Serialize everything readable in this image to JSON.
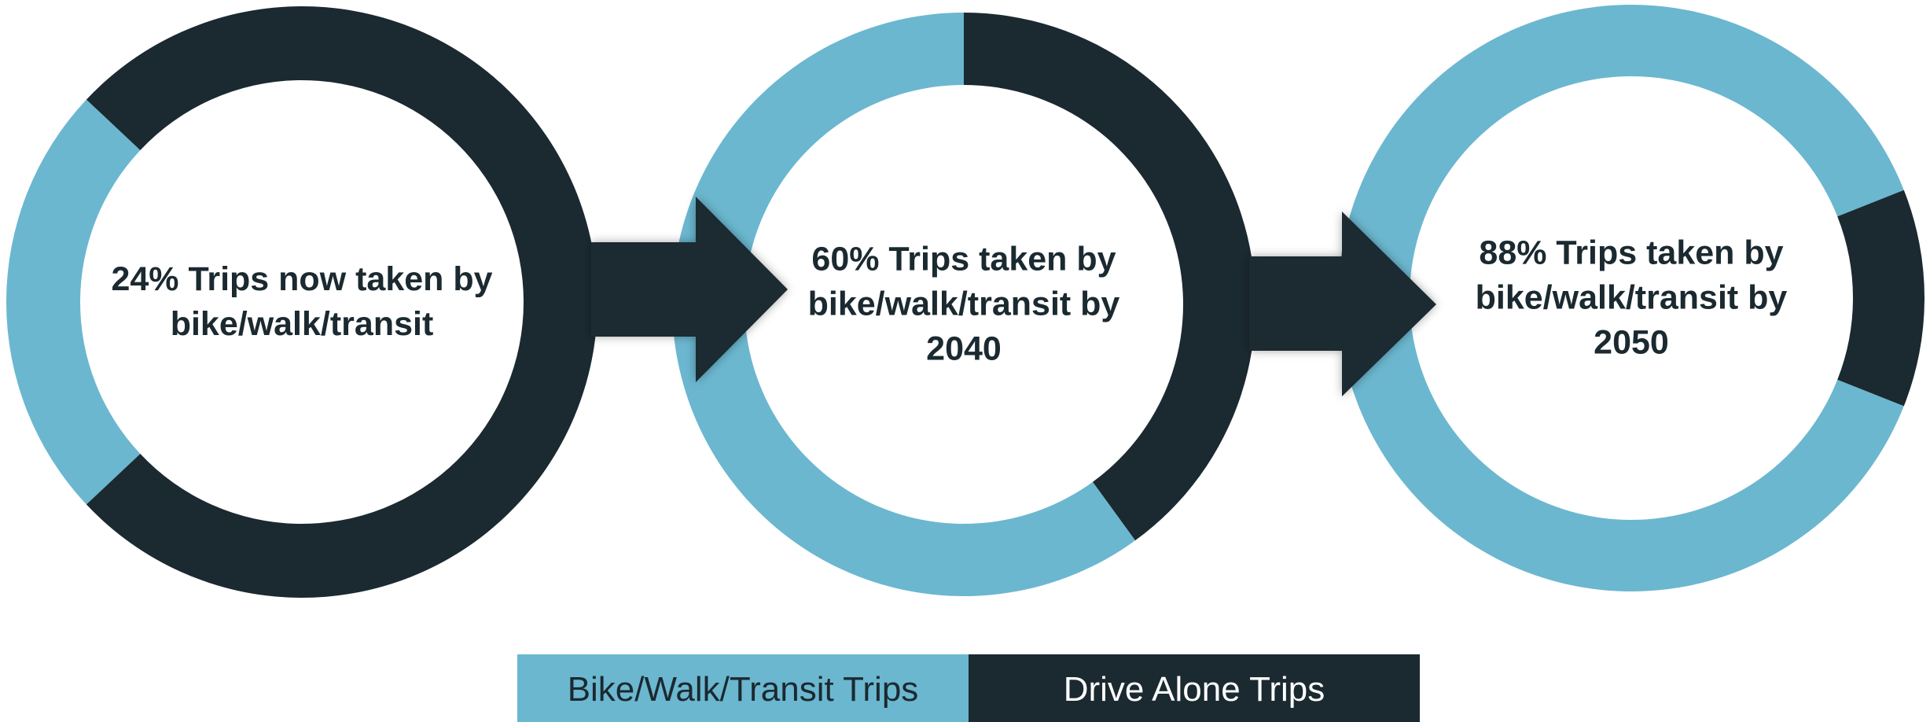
{
  "chart_data": {
    "type": "donut",
    "categories": [
      "Bike/Walk/Transit Trips",
      "Drive Alone Trips"
    ],
    "colors": [
      "#6bb7cf",
      "#1b2930"
    ],
    "series": [
      {
        "label": "24% Trips now taken by bike/walk/transit",
        "values": [
          24,
          76
        ]
      },
      {
        "label": "60% Trips taken by bike/walk/transit by 2040",
        "values": [
          60,
          40
        ]
      },
      {
        "label": "88% Trips taken by bike/walk/transit by 2050",
        "values": [
          88,
          12
        ]
      }
    ]
  }
}
